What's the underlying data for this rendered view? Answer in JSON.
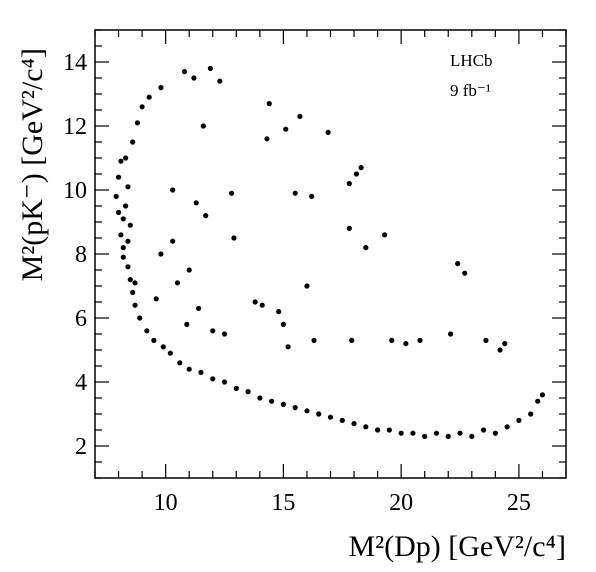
{
  "chart_data": {
    "type": "scatter",
    "title": "",
    "xlabel": "M²(Dp) [GeV²/c⁴]",
    "ylabel": "M²(pK⁻) [GeV²/c⁴]",
    "xlim": [
      7,
      27
    ],
    "ylim": [
      1,
      15
    ],
    "x_ticks": [
      10,
      15,
      20,
      25
    ],
    "y_ticks": [
      2,
      4,
      6,
      8,
      10,
      12,
      14
    ],
    "grid": false,
    "annotations": [
      "LHCb",
      "9 fb⁻¹"
    ],
    "marker_color": "#000000",
    "points": [
      [
        7.9,
        9.8
      ],
      [
        8.0,
        10.4
      ],
      [
        8.1,
        8.6
      ],
      [
        8.2,
        9.1
      ],
      [
        8.3,
        11.0
      ],
      [
        8.4,
        7.6
      ],
      [
        8.5,
        7.2
      ],
      [
        8.6,
        6.8
      ],
      [
        8.7,
        6.4
      ],
      [
        8.9,
        6.0
      ],
      [
        8.1,
        10.9
      ],
      [
        8.2,
        8.2
      ],
      [
        8.3,
        9.5
      ],
      [
        8.4,
        10.1
      ],
      [
        8.5,
        8.9
      ],
      [
        8.6,
        11.5
      ],
      [
        8.0,
        9.3
      ],
      [
        8.2,
        7.9
      ],
      [
        8.4,
        8.4
      ],
      [
        8.7,
        7.1
      ],
      [
        8.8,
        12.1
      ],
      [
        9.0,
        12.6
      ],
      [
        9.2,
        5.6
      ],
      [
        9.3,
        12.9
      ],
      [
        9.5,
        5.3
      ],
      [
        9.8,
        13.2
      ],
      [
        9.9,
        5.1
      ],
      [
        10.2,
        4.9
      ],
      [
        10.6,
        4.6
      ],
      [
        10.8,
        13.7
      ],
      [
        11.2,
        13.5
      ],
      [
        11.0,
        4.4
      ],
      [
        11.5,
        4.3
      ],
      [
        11.9,
        13.8
      ],
      [
        12.0,
        4.1
      ],
      [
        12.3,
        13.4
      ],
      [
        12.5,
        4.0
      ],
      [
        13.0,
        3.8
      ],
      [
        13.5,
        3.7
      ],
      [
        14.0,
        3.5
      ],
      [
        14.5,
        3.4
      ],
      [
        15.0,
        3.3
      ],
      [
        15.5,
        3.2
      ],
      [
        16.0,
        3.1
      ],
      [
        16.5,
        3.0
      ],
      [
        17.0,
        2.9
      ],
      [
        17.5,
        2.8
      ],
      [
        18.0,
        2.7
      ],
      [
        18.5,
        2.6
      ],
      [
        19.0,
        2.5
      ],
      [
        19.5,
        2.5
      ],
      [
        20.0,
        2.4
      ],
      [
        20.5,
        2.4
      ],
      [
        21.0,
        2.3
      ],
      [
        21.5,
        2.4
      ],
      [
        22.0,
        2.3
      ],
      [
        22.5,
        2.4
      ],
      [
        23.0,
        2.3
      ],
      [
        23.5,
        2.5
      ],
      [
        24.0,
        2.4
      ],
      [
        24.5,
        2.6
      ],
      [
        25.0,
        2.8
      ],
      [
        25.5,
        3.0
      ],
      [
        25.8,
        3.4
      ],
      [
        26.0,
        3.6
      ],
      [
        12.9,
        8.5
      ],
      [
        14.4,
        12.7
      ],
      [
        14.3,
        11.6
      ],
      [
        15.1,
        11.9
      ],
      [
        15.7,
        12.3
      ],
      [
        16.9,
        11.8
      ],
      [
        15.5,
        9.9
      ],
      [
        16.2,
        9.8
      ],
      [
        17.8,
        10.2
      ],
      [
        18.1,
        10.5
      ],
      [
        18.3,
        10.7
      ],
      [
        17.8,
        8.8
      ],
      [
        18.5,
        8.2
      ],
      [
        19.3,
        8.6
      ],
      [
        22.4,
        7.7
      ],
      [
        22.7,
        7.4
      ],
      [
        13.8,
        6.5
      ],
      [
        14.1,
        6.4
      ],
      [
        14.8,
        6.2
      ],
      [
        15.0,
        5.8
      ],
      [
        16.0,
        7.0
      ],
      [
        15.2,
        5.1
      ],
      [
        16.3,
        5.3
      ],
      [
        17.9,
        5.3
      ],
      [
        19.6,
        5.3
      ],
      [
        20.2,
        5.2
      ],
      [
        20.8,
        5.3
      ],
      [
        22.1,
        5.5
      ],
      [
        23.6,
        5.3
      ],
      [
        24.2,
        5.0
      ],
      [
        24.4,
        5.2
      ],
      [
        12.0,
        5.6
      ],
      [
        12.5,
        5.5
      ],
      [
        10.5,
        7.1
      ],
      [
        11.0,
        7.5
      ],
      [
        11.4,
        6.3
      ],
      [
        10.9,
        5.8
      ],
      [
        9.6,
        6.6
      ],
      [
        9.8,
        8.0
      ],
      [
        10.3,
        8.4
      ],
      [
        11.3,
        9.6
      ],
      [
        11.7,
        9.2
      ],
      [
        12.8,
        9.9
      ],
      [
        11.6,
        12.0
      ],
      [
        10.3,
        10.0
      ]
    ]
  }
}
